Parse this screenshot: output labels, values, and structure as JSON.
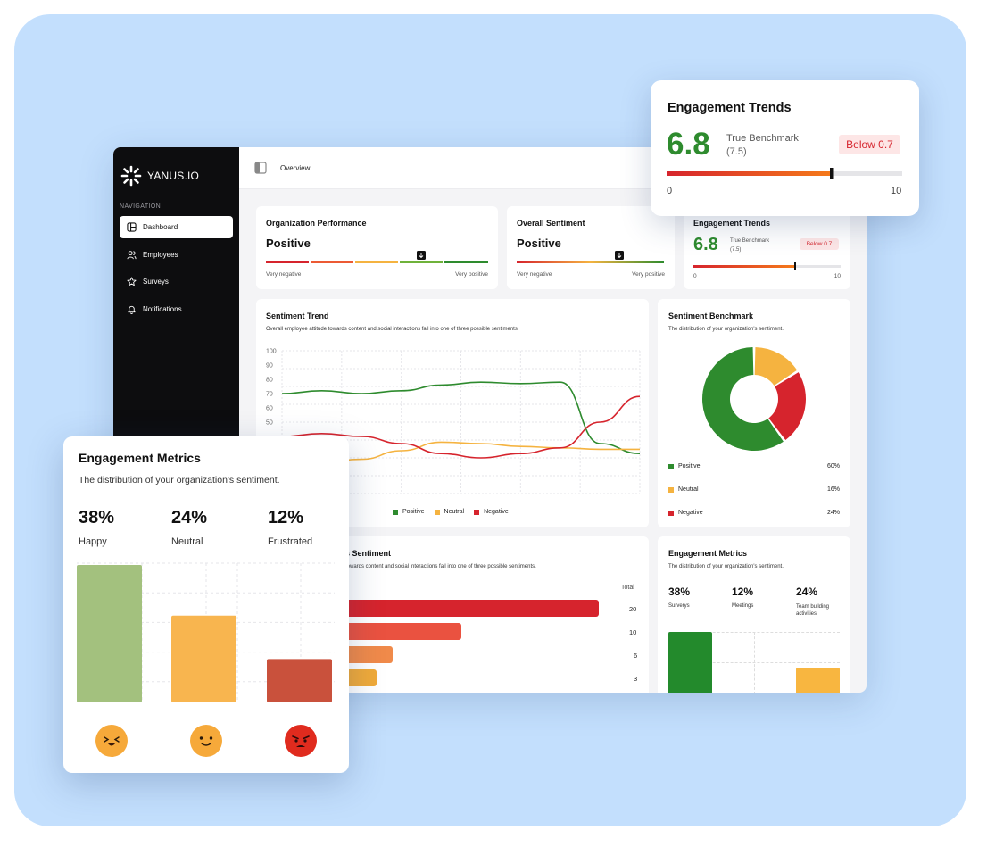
{
  "brand": {
    "name": "YANUS.IO"
  },
  "sidebar": {
    "heading": "NAVIGATION",
    "items": [
      {
        "label": "Dashboard",
        "icon": "dashboard-icon",
        "active": true
      },
      {
        "label": "Employees",
        "icon": "users-icon"
      },
      {
        "label": "Surveys",
        "icon": "star-icon"
      },
      {
        "label": "Notifications",
        "icon": "bell-icon"
      }
    ]
  },
  "topbar": {
    "breadcrumb": "Overview"
  },
  "org_performance": {
    "title": "Organization Performance",
    "value": "Positive",
    "left": "Very negative",
    "right": "Very positive",
    "level": 0.7
  },
  "overall_sentiment": {
    "title": "Overall Sentiment",
    "value": "Positive",
    "left": "Very negative",
    "right": "Very positive",
    "level": 0.7
  },
  "engagement_trends": {
    "title": "Engagement Trends",
    "score": "6.8",
    "benchmark_label": "True Benchmark",
    "benchmark_value": "(7.5)",
    "badge": "Below 0.7",
    "min": "0",
    "max": "10",
    "level": 0.68
  },
  "sentiment_trend": {
    "title": "Sentiment Trend",
    "subtitle": "Overall employee attitude towards content and social interactions fall into one of three possible sentiments.",
    "legend": [
      "Positive",
      "Neutral",
      "Negative"
    ]
  },
  "sentiment_benchmark": {
    "title": "Sentiment Benchmark",
    "subtitle": "The distribution of your organization's sentiment.",
    "items": [
      {
        "label": "Positive",
        "pct": "60%",
        "color": "#2e8b2e"
      },
      {
        "label": "Neutral",
        "pct": "16%",
        "color": "#f5b340"
      },
      {
        "label": "Negative",
        "pct": "24%",
        "color": "#d6242d"
      }
    ]
  },
  "topic_sentiment": {
    "title": "s Sentiment",
    "subtitle": "towards content and social interactions fall into one of three possible sentiments.",
    "total_label": "Total",
    "totals": [
      "20",
      "10",
      "6",
      "3"
    ]
  },
  "engagement_metrics_small": {
    "title": "Engagement Metrics",
    "subtitle": "The distribution of your organization's sentiment.",
    "stats": [
      {
        "pct": "38%",
        "label": "Surverys"
      },
      {
        "pct": "12%",
        "label": "Meetings"
      },
      {
        "pct": "24%",
        "label": "Team building activities"
      }
    ]
  },
  "engagement_metrics": {
    "title": "Engagement Metrics",
    "subtitle": "The distribution of your organization's sentiment.",
    "stats": [
      {
        "pct": "38%",
        "label": "Happy"
      },
      {
        "pct": "24%",
        "label": "Neutral"
      },
      {
        "pct": "12%",
        "label": "Frustrated"
      }
    ]
  },
  "chart_data": [
    {
      "type": "line",
      "title": "Sentiment Trend",
      "ylim": [
        0,
        100
      ],
      "yticks": [
        100,
        90,
        80,
        70,
        60,
        50
      ],
      "x": [
        0,
        1,
        2,
        3,
        4,
        5,
        6,
        7,
        8,
        9
      ],
      "series": [
        {
          "name": "Positive",
          "color": "#2e8b2e",
          "values": [
            70,
            72,
            70,
            72,
            76,
            78,
            77,
            78,
            35,
            28
          ]
        },
        {
          "name": "Neutral",
          "color": "#f5b340",
          "values": [
            20,
            22,
            24,
            30,
            36,
            35,
            33,
            32,
            31,
            31
          ]
        },
        {
          "name": "Negative",
          "color": "#d6242d",
          "values": [
            40,
            42,
            40,
            35,
            28,
            25,
            28,
            32,
            50,
            68
          ]
        }
      ]
    },
    {
      "type": "pie",
      "title": "Sentiment Benchmark",
      "categories": [
        "Positive",
        "Neutral",
        "Negative"
      ],
      "values": [
        60,
        16,
        24
      ]
    },
    {
      "type": "bar",
      "title": "Engagement Metrics",
      "categories": [
        "Happy",
        "Neutral",
        "Frustrated"
      ],
      "values": [
        38,
        24,
        12
      ]
    }
  ]
}
